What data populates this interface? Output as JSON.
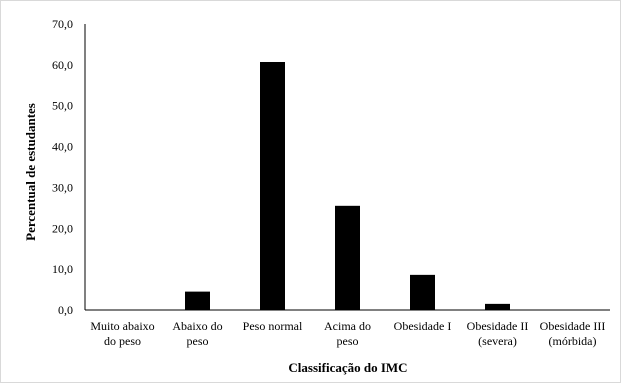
{
  "chart_data": {
    "type": "bar",
    "title": "",
    "xlabel": "Classificação do IMC",
    "ylabel": "Percentual de estudantes",
    "ylim": [
      0,
      70
    ],
    "yticks": [
      "0,0",
      "10,0",
      "20,0",
      "30,0",
      "40,0",
      "50,0",
      "60,0",
      "70,0"
    ],
    "grid": false,
    "legend": "none",
    "bar_color": "#000000",
    "categories": [
      [
        "Muito abaixo",
        "do peso"
      ],
      [
        "Abaixo do",
        "peso"
      ],
      [
        "Peso normal"
      ],
      [
        "Acima do",
        "peso"
      ],
      [
        "Obesidade I"
      ],
      [
        "Obesidade II",
        "(severa)"
      ],
      [
        "Obesidade III",
        "(mórbida)"
      ]
    ],
    "values": [
      0.0,
      4.5,
      60.7,
      25.5,
      8.6,
      1.5,
      0.0
    ]
  }
}
